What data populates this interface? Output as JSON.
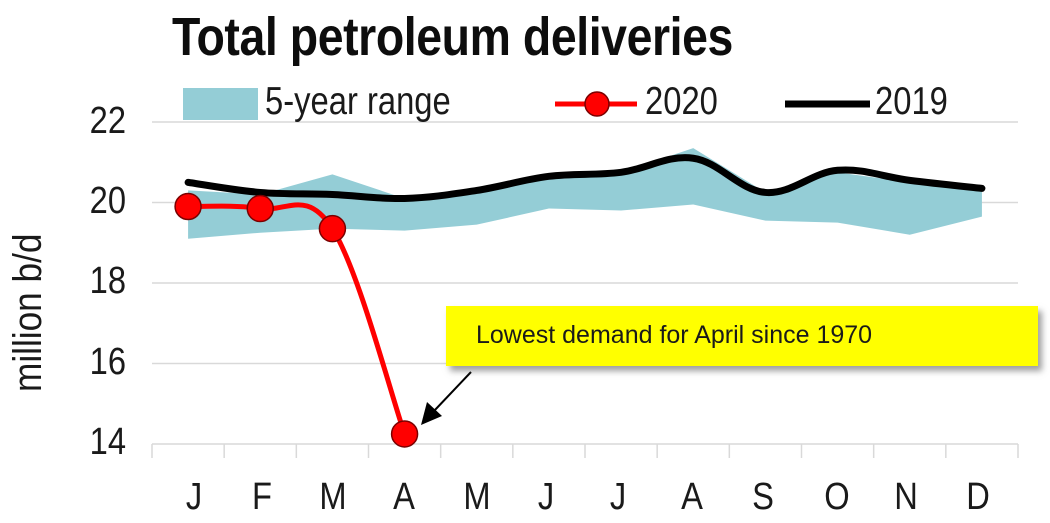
{
  "title": "Total petroleum deliveries",
  "legend": {
    "range_label": "5-year range",
    "series_2020_label": "2020",
    "series_2019_label": "2019"
  },
  "y_axis": {
    "label": "million b/d",
    "ticks": [
      "22",
      "20",
      "18",
      "16",
      "14"
    ]
  },
  "x_axis": {
    "ticks": [
      "J",
      "F",
      "M",
      "A",
      "M",
      "J",
      "J",
      "A",
      "S",
      "O",
      "N",
      "D"
    ]
  },
  "annotation": {
    "text": "Lowest demand for April since 1970",
    "background": "#ffff00"
  },
  "colors": {
    "range_fill": "#94cdd6",
    "series_2020": "#ff0000",
    "series_2019": "#000000",
    "gridline": "#d9d9d9"
  },
  "chart_data": {
    "type": "line",
    "title": "Total petroleum deliveries",
    "xlabel": "",
    "ylabel": "million b/d",
    "ylim": [
      14,
      22
    ],
    "yticks": [
      14,
      16,
      18,
      20,
      22
    ],
    "grid": "horizontal",
    "legend_position": "top",
    "categories": [
      "J",
      "F",
      "M",
      "A",
      "M",
      "J",
      "J",
      "A",
      "S",
      "O",
      "N",
      "D"
    ],
    "series": [
      {
        "name": "5-year range",
        "type": "area-range",
        "upper": [
          20.3,
          20.2,
          20.7,
          20.1,
          20.3,
          20.6,
          20.75,
          21.35,
          20.25,
          20.75,
          20.5,
          20.3
        ],
        "lower": [
          19.1,
          19.25,
          19.35,
          19.3,
          19.45,
          19.85,
          19.8,
          19.95,
          19.55,
          19.5,
          19.2,
          19.65
        ]
      },
      {
        "name": "2020",
        "type": "line-markers",
        "values": [
          19.9,
          19.85,
          19.35,
          14.25,
          null,
          null,
          null,
          null,
          null,
          null,
          null,
          null
        ]
      },
      {
        "name": "2019",
        "type": "line",
        "values": [
          20.5,
          20.25,
          20.2,
          20.1,
          20.3,
          20.65,
          20.75,
          21.1,
          20.25,
          20.8,
          20.55,
          20.35
        ]
      }
    ],
    "annotations": [
      {
        "text": "Lowest demand for April since 1970",
        "points_to": {
          "x": "A",
          "y": 14.25
        }
      }
    ]
  }
}
